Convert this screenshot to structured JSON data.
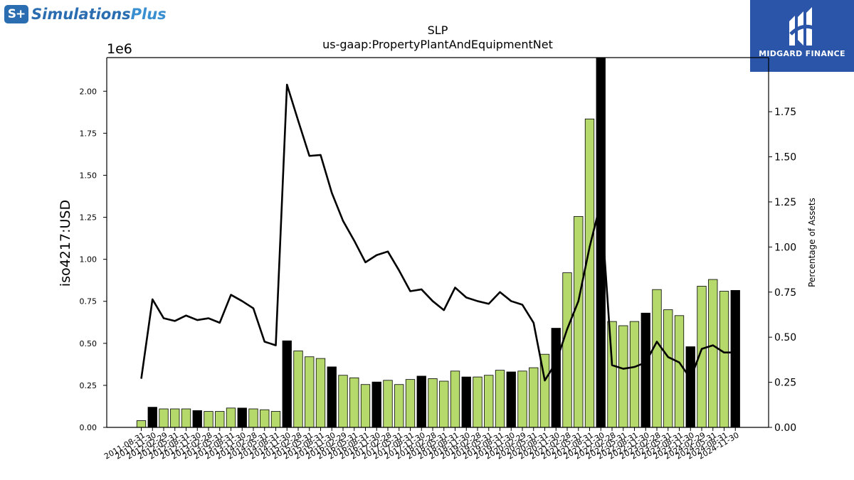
{
  "header": {
    "brand_prefix": "S+",
    "brand_name": "Simulations",
    "brand_suffix": "Plus",
    "sponsor": "MIDGARD FINANCE"
  },
  "chart_data": {
    "type": "bar",
    "title": "SLP",
    "subtitle": "us-gaap:PropertyPlantAndEquipmentNet",
    "ylabel": "iso4217:USD",
    "y_offset_label": "1e6",
    "y2label": "Percentage of Assets",
    "ylim": [
      0,
      2.2
    ],
    "y2lim": [
      0,
      2.05
    ],
    "yticks": [
      "0.00",
      "0.25",
      "0.50",
      "0.75",
      "1.00",
      "1.25",
      "1.50",
      "1.75",
      "2.00"
    ],
    "y2ticks": [
      "0.00",
      "0.25",
      "0.50",
      "0.75",
      "1.00",
      "1.25",
      "1.50",
      "1.75"
    ],
    "colors": {
      "quarter": "#b5d96b",
      "annual": "#000000",
      "line": "#000000"
    },
    "categories": [
      "2011-08-31",
      "2011-11-30",
      "2012-02-29",
      "2012-05-31",
      "2012-08-31",
      "2012-11-30",
      "2013-02-28",
      "2013-05-31",
      "2013-08-31",
      "2013-11-30",
      "2014-02-28",
      "2014-05-31",
      "2014-08-31",
      "2014-11-30",
      "2015-02-28",
      "2015-05-31",
      "2015-08-31",
      "2015-11-30",
      "2016-02-29",
      "2016-05-31",
      "2016-08-31",
      "2016-11-30",
      "2017-02-28",
      "2017-05-31",
      "2017-08-31",
      "2017-11-30",
      "2018-02-28",
      "2018-05-31",
      "2018-08-31",
      "2018-11-30",
      "2019-02-28",
      "2019-05-31",
      "2019-08-31",
      "2019-11-30",
      "2020-02-29",
      "2020-05-31",
      "2020-08-31",
      "2020-11-30",
      "2021-02-28",
      "2021-05-31",
      "2021-08-31",
      "2021-11-30",
      "2022-02-28",
      "2022-05-31",
      "2022-08-31",
      "2022-11-30",
      "2023-02-28",
      "2023-05-31",
      "2023-08-31",
      "2023-11-30",
      "2024-02-29",
      "2024-05-31",
      "2024-08-31",
      "2024-11-30"
    ],
    "series": [
      {
        "values": [
          0.04,
          0.12,
          0.11,
          0.11,
          0.11,
          0.1,
          0.095,
          0.095,
          0.115,
          0.115,
          0.11,
          0.105,
          0.095,
          0.515,
          0.455,
          0.42,
          0.41,
          0.36,
          0.31,
          0.295,
          0.255,
          0.27,
          0.28,
          0.255,
          0.285,
          0.305,
          0.29,
          0.275,
          0.335,
          0.3,
          0.3,
          0.31,
          0.34,
          0.33,
          0.335,
          0.355,
          0.435,
          0.59,
          0.92,
          1.255,
          1.835,
          2.2,
          0.63,
          0.605,
          0.63,
          0.68,
          0.82,
          0.7,
          0.665,
          0.48,
          0.84,
          0.88,
          0.81,
          0.815
        ],
        "bar_kind": [
          "q",
          "a",
          "q",
          "q",
          "q",
          "a",
          "q",
          "q",
          "q",
          "a",
          "q",
          "q",
          "q",
          "a",
          "q",
          "q",
          "q",
          "a",
          "q",
          "q",
          "q",
          "a",
          "q",
          "q",
          "q",
          "a",
          "q",
          "q",
          "q",
          "a",
          "q",
          "q",
          "q",
          "a",
          "q",
          "q",
          "q",
          "a",
          "q",
          "q",
          "q",
          "a",
          "q",
          "q",
          "q",
          "a",
          "q",
          "q",
          "q",
          "a",
          "q",
          "q",
          "q",
          "a"
        ]
      },
      {
        "values": [
          0.27,
          0.71,
          0.605,
          0.59,
          0.62,
          0.595,
          0.605,
          0.58,
          0.735,
          0.7,
          0.66,
          0.475,
          0.455,
          1.9,
          1.7,
          1.505,
          1.51,
          1.3,
          1.145,
          1.035,
          0.915,
          0.955,
          0.975,
          0.87,
          0.755,
          0.765,
          0.7,
          0.65,
          0.775,
          0.72,
          0.7,
          0.685,
          0.75,
          0.7,
          0.68,
          0.58,
          0.26,
          0.36,
          0.545,
          0.7,
          1.0,
          1.25,
          0.345,
          0.325,
          0.335,
          0.36,
          0.475,
          0.39,
          0.36,
          0.27,
          0.435,
          0.455,
          0.415,
          0.415
        ]
      }
    ]
  }
}
